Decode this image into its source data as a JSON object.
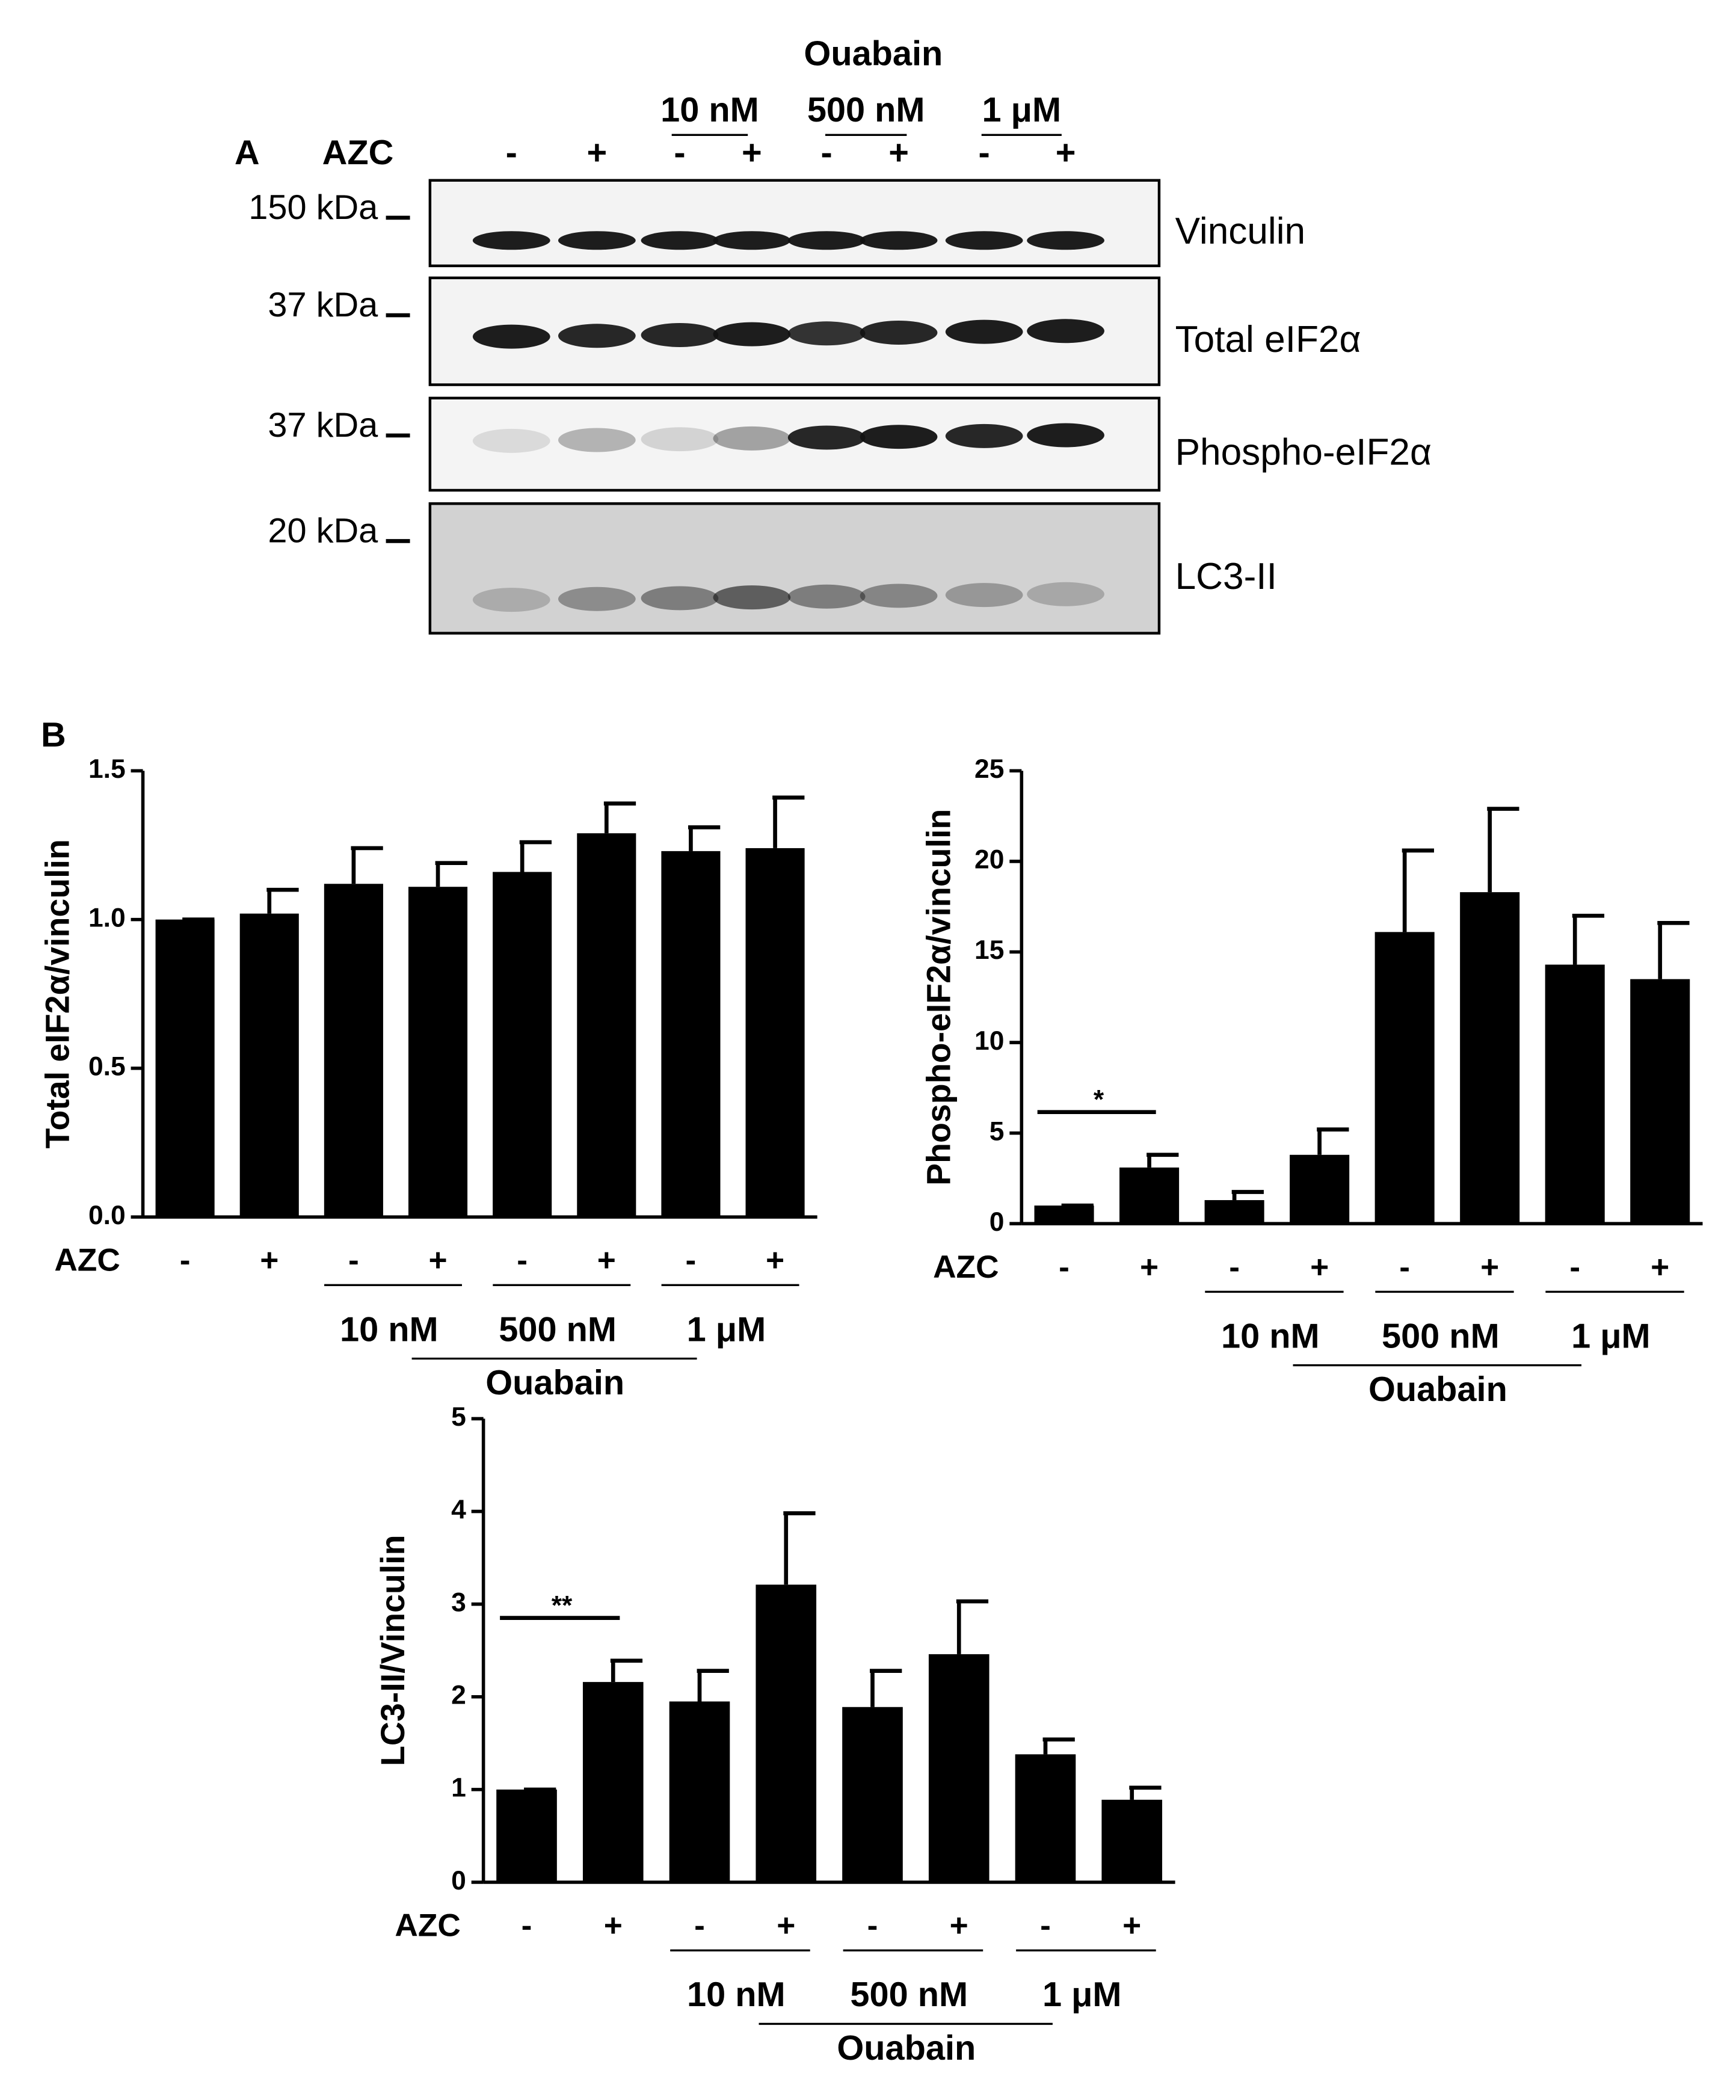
{
  "blot": {
    "label": "A",
    "treatment": "Ouabain",
    "doses": [
      "10 nM",
      "500 nM",
      "1 μM"
    ],
    "row_label": "AZC",
    "lanes": [
      "-",
      "+",
      "-",
      "+",
      "-",
      "+",
      "-",
      "+"
    ],
    "markers": [
      "150 kDa",
      "37 kDa",
      "37 kDa",
      "20 kDa"
    ],
    "proteins": [
      "Vinculin",
      "Total eIF2α",
      "Phospho-eIF2α",
      "LC3-II"
    ]
  },
  "panel_b_label": "B",
  "chart_data": [
    {
      "type": "bar",
      "y_label": "Total eIF2α/vinculin",
      "x_label": "AZC",
      "categories": [
        "-",
        "+",
        "-",
        "+",
        "-",
        "+",
        "-",
        "+"
      ],
      "values": [
        1.0,
        1.02,
        1.12,
        1.11,
        1.16,
        1.29,
        1.23,
        1.24
      ],
      "errors": [
        0,
        0.08,
        0.12,
        0.08,
        0.1,
        0.1,
        0.08,
        0.17
      ],
      "color": "#000000",
      "ylim": [
        0,
        1.5
      ],
      "yticks": [
        {
          "value": 0,
          "label": "0.0"
        },
        0.5,
        {
          "value": 1,
          "label": "1.0"
        },
        1.5
      ],
      "groups": [
        "10 nM",
        "500 nM",
        "1 μM"
      ],
      "group_title": "Ouabain"
    },
    {
      "type": "bar",
      "y_label": "Phospho-eIF2α/vinculin",
      "x_label": "AZC",
      "categories": [
        "-",
        "+",
        "-",
        "+",
        "-",
        "+",
        "-",
        "+"
      ],
      "values": [
        1.0,
        3.1,
        1.3,
        3.8,
        16.1,
        18.3,
        14.3,
        13.5
      ],
      "errors": [
        0,
        0.7,
        0.45,
        1.4,
        4.5,
        4.6,
        2.7,
        3.1
      ],
      "color": "#000000",
      "ylim": [
        0,
        25
      ],
      "yticks": [
        0,
        5,
        10,
        15,
        20,
        25
      ],
      "groups": [
        "10 nM",
        "500 nM",
        "1 μM"
      ],
      "group_title": "Ouabain",
      "significance": "*"
    },
    {
      "type": "bar",
      "y_label": "LC3-II/Vinculin",
      "x_label": "AZC",
      "categories": [
        "-",
        "+",
        "-",
        "+",
        "-",
        "+",
        "-",
        "+"
      ],
      "values": [
        1.0,
        2.16,
        1.95,
        3.21,
        1.89,
        2.46,
        1.38,
        0.89
      ],
      "errors": [
        0,
        0.23,
        0.33,
        0.77,
        0.39,
        0.57,
        0.16,
        0.13
      ],
      "color": "#000000",
      "ylim": [
        0,
        5
      ],
      "yticks": [
        0,
        1,
        2,
        3,
        4,
        5
      ],
      "groups": [
        "10 nM",
        "500 nM",
        "1 μM"
      ],
      "group_title": "Ouabain",
      "significance": "**"
    }
  ]
}
